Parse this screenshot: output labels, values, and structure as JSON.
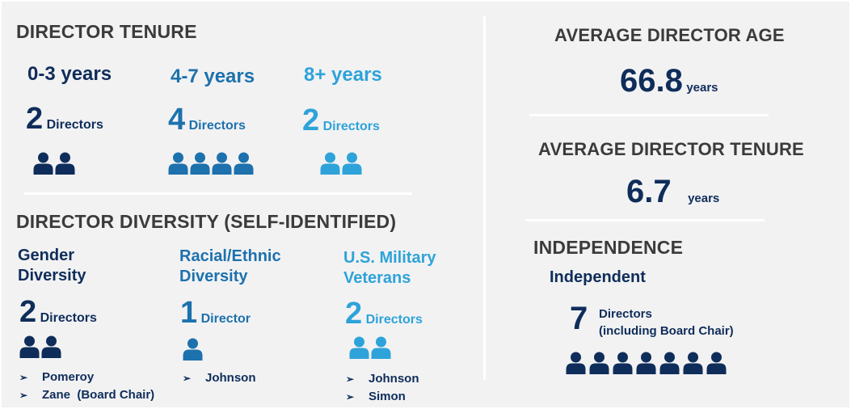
{
  "colors": {
    "navy": "#0f2d5a",
    "mid_blue": "#1d71ad",
    "light_blue": "#2ea3d9",
    "heading_gray": "#3b3b3b",
    "background": "#f2f2f3"
  },
  "tenure": {
    "title": "DIRECTOR TENURE",
    "buckets": [
      {
        "label": "0-3 years",
        "count": "2",
        "unit": "Directors",
        "icons": 2,
        "color": "#0f2d5a"
      },
      {
        "label": "4-7 years",
        "count": "4",
        "unit": "Directors",
        "icons": 4,
        "color": "#1d71ad"
      },
      {
        "label": "8+ years",
        "count": "2",
        "unit": "Directors",
        "icons": 2,
        "color": "#2ea3d9"
      }
    ]
  },
  "diversity": {
    "title": "DIRECTOR DIVERSITY (SELF-IDENTIFIED)",
    "groups": [
      {
        "label_line1": "Gender",
        "label_line2": "Diversity",
        "count": "2",
        "unit": "Directors",
        "icons": 2,
        "color": "#0f2d5a",
        "names": [
          "Pomeroy",
          "Zane  (Board Chair)"
        ]
      },
      {
        "label_line1": "Racial/Ethnic",
        "label_line2": "Diversity",
        "count": "1",
        "unit": "Director",
        "icons": 1,
        "color": "#1d71ad",
        "names": [
          "Johnson"
        ]
      },
      {
        "label_line1": "U.S. Military",
        "label_line2": "Veterans",
        "count": "2",
        "unit": "Directors",
        "icons": 2,
        "color": "#2ea3d9",
        "names": [
          "Johnson",
          "Simon"
        ]
      }
    ],
    "bullet_icon": "arrowhead-bullet-icon"
  },
  "age": {
    "title": "AVERAGE DIRECTOR AGE",
    "value": "66.8",
    "unit": "years"
  },
  "avg_tenure": {
    "title": "AVERAGE DIRECTOR TENURE",
    "value": "6.7",
    "unit": "years"
  },
  "independence": {
    "title": "INDEPENDENCE",
    "subtitle": "Independent",
    "count": "7",
    "unit_line1": "Directors",
    "unit_line2": "(including Board Chair)",
    "icons": 7,
    "color": "#0f2d5a"
  }
}
